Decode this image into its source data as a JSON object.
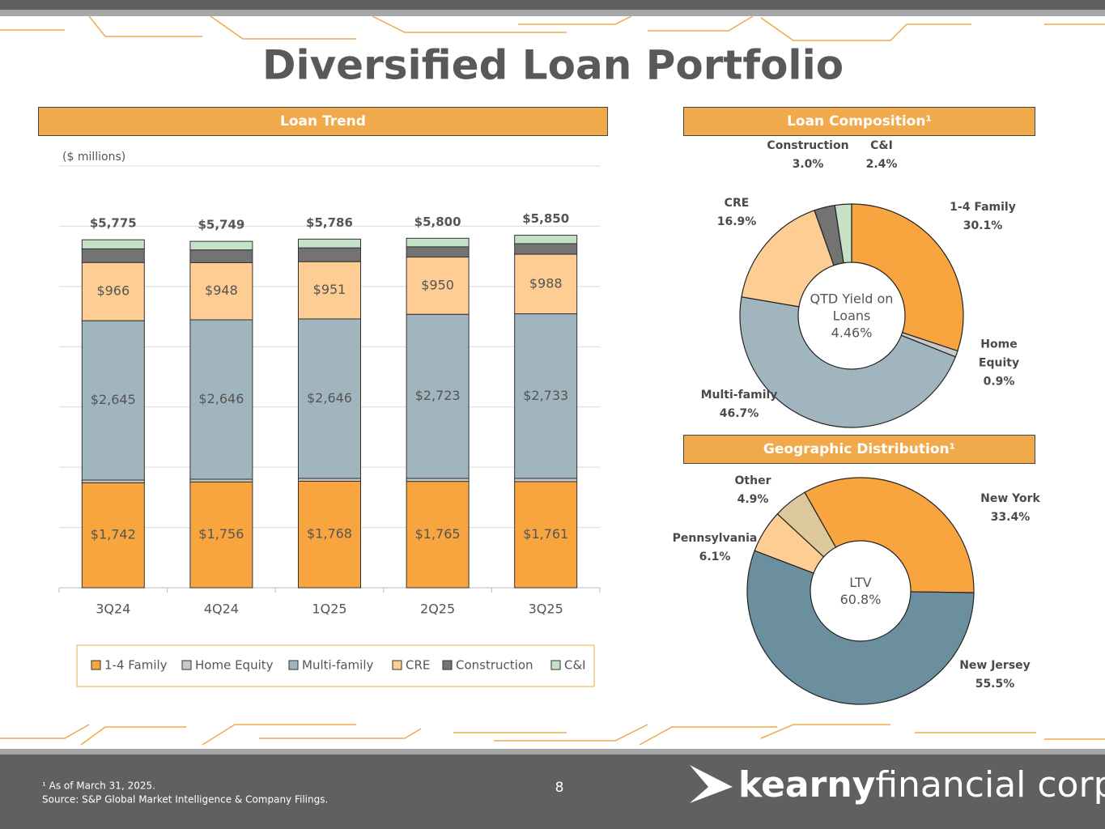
{
  "title": "Diversified Loan Portfolio",
  "chart_data": [
    {
      "type": "bar",
      "stacked": true,
      "title": "Loan Trend",
      "subtitle": "($ millions)",
      "categories": [
        "3Q24",
        "4Q24",
        "1Q25",
        "2Q25",
        "3Q25"
      ],
      "ylim": [
        0,
        7000
      ],
      "yticks": [
        0,
        1000,
        2000,
        3000,
        4000,
        5000,
        6000,
        7000
      ],
      "grid": true,
      "series": [
        {
          "name": "1-4 Family",
          "color": "#f9a53f",
          "values": [
            1742,
            1756,
            1768,
            1765,
            1761
          ],
          "value_labels": [
            "$1,742",
            "$1,756",
            "$1,768",
            "$1,765",
            "$1,761"
          ]
        },
        {
          "name": "Home Equity",
          "color": "#c9c9c9",
          "values": [
            45,
            45,
            47,
            50,
            53
          ]
        },
        {
          "name": "Multi-family",
          "color": "#a1b5bf",
          "values": [
            2645,
            2646,
            2646,
            2723,
            2733
          ],
          "value_labels": [
            "$2,645",
            "$2,646",
            "$2,646",
            "$2,723",
            "$2,733"
          ]
        },
        {
          "name": "CRE",
          "color": "#fdcd93",
          "values": [
            966,
            948,
            951,
            950,
            988
          ],
          "value_labels": [
            "$966",
            "$948",
            "$951",
            "$950",
            "$988"
          ]
        },
        {
          "name": "Construction",
          "color": "#737373",
          "values": [
            227,
            212,
            229,
            170,
            176
          ]
        },
        {
          "name": "C&I",
          "color": "#c6e2c6",
          "values": [
            150,
            142,
            145,
            142,
            139
          ]
        }
      ],
      "totals": {
        "values": [
          5775,
          5749,
          5786,
          5800,
          5850
        ],
        "value_labels": [
          "$5,775",
          "$5,749",
          "$5,786",
          "$5,800",
          "$5,850"
        ]
      }
    },
    {
      "type": "pie",
      "donut": true,
      "title": "Loan Composition¹",
      "center_label": [
        "QTD Yield on",
        "Loans",
        "4.46%"
      ],
      "categories": [
        "1-4 Family",
        "Home Equity",
        "Multi-family",
        "CRE",
        "Construction",
        "C&I"
      ],
      "values": [
        30.1,
        0.9,
        46.7,
        16.9,
        3.0,
        2.4
      ],
      "value_labels": [
        "30.1%",
        "0.9%",
        "46.7%",
        "16.9%",
        "3.0%",
        "2.4%"
      ],
      "colors": [
        "#f9a53f",
        "#c9c9c9",
        "#a1b5bf",
        "#fdcd93",
        "#737373",
        "#c6e2c6"
      ]
    },
    {
      "type": "pie",
      "donut": true,
      "title": "Geographic Distribution¹",
      "center_label": [
        "LTV",
        "60.8%"
      ],
      "categories": [
        "New York",
        "New Jersey",
        "Pennsylvania",
        "Other"
      ],
      "values": [
        33.4,
        55.5,
        6.1,
        4.9
      ],
      "value_labels": [
        "33.4%",
        "55.5%",
        "6.1%",
        "4.9%"
      ],
      "colors": [
        "#f9a53f",
        "#6c8f9f",
        "#fdcd93",
        "#dcc89a"
      ]
    }
  ],
  "footnote": "¹ As of March 31, 2025.",
  "source": "Source: S&P Global Market Intelligence & Company Filings.",
  "page_number": "8",
  "logo": {
    "bold": "kearny",
    "light": "financial corp."
  }
}
